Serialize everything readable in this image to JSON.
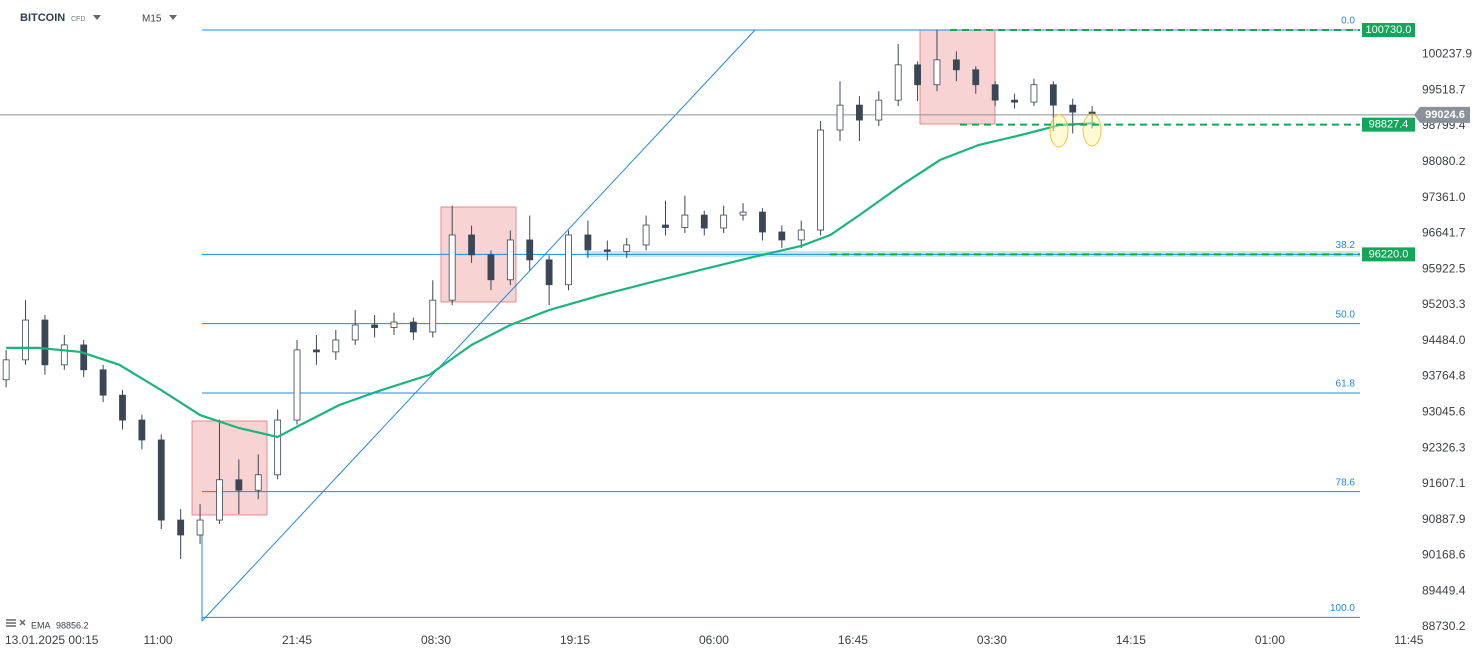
{
  "header": {
    "symbol": "BITCOIN",
    "instrument_type": "CFD",
    "timeframe": "M15"
  },
  "chart_data": {
    "type": "candlestick",
    "up_color": "#ffffff",
    "down_color": "#3b4754",
    "wick_color": "#3b4754",
    "x": [
      -4,
      2,
      8,
      14,
      20,
      26,
      32,
      38,
      44,
      50,
      56,
      62,
      68,
      74,
      80,
      86,
      92,
      98,
      104,
      110,
      116,
      122,
      128,
      134,
      140,
      146,
      152,
      158,
      164,
      170,
      176,
      182,
      188,
      194,
      200,
      206,
      212,
      218,
      224,
      230,
      236,
      242,
      248,
      254,
      260,
      266,
      272,
      278,
      284,
      290,
      296,
      302,
      308,
      314,
      320,
      326,
      332
    ],
    "open": [
      93700,
      94100,
      94900,
      94000,
      94400,
      93900,
      93390,
      92890,
      92490,
      90880,
      90580,
      90880,
      91690,
      91480,
      91790,
      92890,
      94300,
      94260,
      94500,
      94800,
      94750,
      94860,
      94660,
      95300,
      96610,
      96210,
      95710,
      96510,
      96110,
      95610,
      96610,
      96310,
      96280,
      96410,
      96810,
      96760,
      97010,
      96750,
      97010,
      97070,
      96670,
      96510,
      96710,
      98720,
      99220,
      98920,
      99320,
      100030,
      99630,
      100130,
      99930,
      99630,
      99320,
      99280,
      99630,
      99220,
      99080
    ],
    "high": [
      94300,
      95300,
      95000,
      94600,
      94500,
      94000,
      93500,
      93000,
      92600,
      91100,
      91200,
      92900,
      92100,
      92200,
      93100,
      94500,
      94600,
      94700,
      95100,
      95000,
      95050,
      94950,
      95700,
      97200,
      96800,
      96300,
      96700,
      97000,
      96200,
      96700,
      96900,
      96500,
      96550,
      97000,
      97300,
      97400,
      97100,
      97200,
      97250,
      97150,
      96800,
      96900,
      98900,
      99700,
      99400,
      99500,
      100450,
      100100,
      100730,
      100300,
      100000,
      99700,
      99450,
      99750,
      99700,
      99350,
      99200
    ],
    "low": [
      93550,
      94000,
      93800,
      93900,
      93750,
      93250,
      92700,
      92300,
      90700,
      90100,
      90400,
      90800,
      91000,
      91300,
      91700,
      92800,
      94000,
      94100,
      94400,
      94550,
      94600,
      94500,
      94550,
      95200,
      96050,
      95500,
      95600,
      95900,
      95200,
      95500,
      96150,
      96100,
      96150,
      96300,
      96600,
      96650,
      96600,
      96650,
      96900,
      96500,
      96350,
      96350,
      96600,
      98500,
      98500,
      98800,
      99200,
      99300,
      99500,
      99700,
      99450,
      99200,
      99150,
      99200,
      98700,
      98650,
      98750
    ],
    "close": [
      94100,
      94900,
      94000,
      94400,
      93900,
      93390,
      92890,
      92490,
      90880,
      90580,
      90880,
      91690,
      91480,
      91790,
      92890,
      94300,
      94260,
      94500,
      94800,
      94750,
      94860,
      94660,
      95300,
      96610,
      96210,
      95710,
      96510,
      96110,
      95610,
      96610,
      96310,
      96280,
      96410,
      96810,
      96760,
      97010,
      96750,
      97010,
      97070,
      96670,
      96510,
      96710,
      98720,
      99220,
      98920,
      99320,
      100030,
      99630,
      100130,
      99930,
      99630,
      99320,
      99280,
      99630,
      99220,
      99080,
      99025
    ],
    "ema": {
      "name": "EMA",
      "color": "#1db47b",
      "current": 98856.2,
      "x": [
        -4,
        6,
        19,
        31,
        44,
        56,
        68,
        80,
        87,
        99,
        112,
        127,
        140,
        152,
        164,
        180,
        195,
        211,
        226,
        242,
        251,
        260,
        273,
        285,
        297,
        310,
        322,
        333
      ],
      "values": [
        94340,
        94340,
        94260,
        94000,
        93490,
        92990,
        92730,
        92550,
        92790,
        93190,
        93490,
        93800,
        94400,
        94800,
        95100,
        95400,
        95650,
        95910,
        96150,
        96390,
        96610,
        97010,
        97610,
        98120,
        98420,
        98620,
        98820,
        98856.2
      ]
    },
    "fibonacci": {
      "color": "#1e88e5",
      "high": 100730,
      "low": 88924,
      "levels": [
        {
          "value": 0,
          "label": "0.0"
        },
        38.2,
        {
          "value": 50,
          "label": "50.0"
        },
        61.8,
        78.6,
        {
          "value": 100,
          "label": "100.0"
        }
      ]
    },
    "price_lines": [
      {
        "value": 100730,
        "label": "100730.0",
        "color": "#13a65b"
      },
      {
        "value": 98827.4,
        "label": "98827.4",
        "color": "#13a65b"
      },
      {
        "value": 96220,
        "label": "96220.0",
        "color": "#13a65b"
      }
    ],
    "last_price": {
      "value": 99024.6,
      "color": "#8a9199"
    },
    "xlim": [
      -5.9,
      431.9
    ],
    "xticks": [
      {
        "value": 0,
        "label": "13.01.2025 00:15"
      },
      {
        "value": 43,
        "label": "11:00"
      },
      {
        "value": 86,
        "label": "21:45"
      },
      {
        "value": 129,
        "label": "08:30"
      },
      {
        "value": 172,
        "label": "19:15"
      },
      {
        "value": 215,
        "label": "06:00"
      },
      {
        "value": 258,
        "label": "16:45"
      },
      {
        "value": 301,
        "label": "03:30"
      },
      {
        "value": 344,
        "label": "14:15"
      },
      {
        "value": 387,
        "label": "01:00"
      },
      {
        "value": 430,
        "label": "11:45"
      }
    ],
    "ylim": [
      88630,
      101333
    ],
    "yticks": [
      100237.9,
      99518.7,
      98799.4,
      98080.2,
      {
        "value": 97361,
        "label": "97361.0"
      },
      96641.7,
      95922.5,
      95203.3,
      {
        "value": 94484,
        "label": "94484.0"
      },
      93764.8,
      93045.6,
      92326.3,
      91607.1,
      90887.9,
      90168.6,
      89449.4,
      88730.2
    ]
  }
}
